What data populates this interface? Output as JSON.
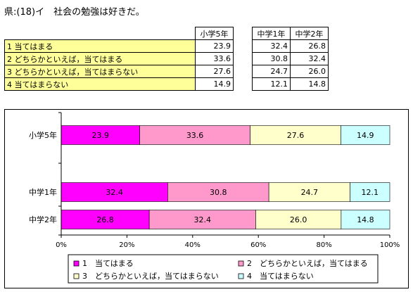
{
  "title": "県:(18)イ　社会の勉強は好きだ。",
  "table": {
    "headers": [
      "小学5年",
      "中学1年",
      "中学2年"
    ],
    "rows": [
      {
        "label": "1  当てはまる",
        "values": [
          "23.9",
          "32.4",
          "26.8"
        ]
      },
      {
        "label": "2  どちらかといえば，当てはまる",
        "values": [
          "33.6",
          "30.8",
          "32.4"
        ]
      },
      {
        "label": "3  どちらかといえば，当てはまらない",
        "values": [
          "27.6",
          "24.7",
          "26.0"
        ]
      },
      {
        "label": "4  当てはまらない",
        "values": [
          "14.9",
          "12.1",
          "14.8"
        ]
      }
    ]
  },
  "chart_data": {
    "type": "bar",
    "orientation": "horizontal",
    "stacked": true,
    "categories": [
      "小学5年",
      "中学1年",
      "中学2年"
    ],
    "series": [
      {
        "name": "1　当てはまる",
        "values": [
          23.9,
          32.4,
          26.8
        ],
        "color": "#ff00ff"
      },
      {
        "name": "2　どちらかといえば，当てはまる",
        "values": [
          33.6,
          30.8,
          32.4
        ],
        "color": "#ff99cc"
      },
      {
        "name": "3　どちらかといえば，当てはまらない",
        "values": [
          27.6,
          24.7,
          26.0
        ],
        "color": "#ffffcc"
      },
      {
        "name": "4　当てはまらない",
        "values": [
          14.9,
          12.1,
          14.8
        ],
        "color": "#ccffff"
      }
    ],
    "xlim": [
      0,
      100
    ],
    "xticks": [
      "0%",
      "20%",
      "40%",
      "60%",
      "80%",
      "100%"
    ],
    "grid": false,
    "legend": "bottom"
  }
}
